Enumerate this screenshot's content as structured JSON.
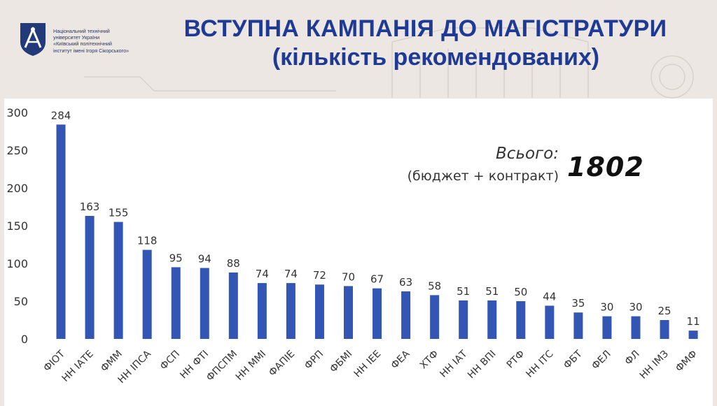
{
  "header": {
    "logo_lines": [
      "Національний технічний",
      "університет України",
      "«Київський політехнічний",
      "інститут імені Ігоря Сікорського»"
    ],
    "title": "ВСТУПНА КАМПАНІЯ ДО МАГІСТРАТУРИ",
    "subtitle": "(кількість рекомендованих)"
  },
  "summary": {
    "label": "Всього:",
    "sublabel": "(бюджет + контракт)",
    "value": "1802"
  },
  "colors": {
    "bar": "#3355b3",
    "title": "#1e3a94",
    "background": "#ece7e2"
  },
  "chart_data": {
    "type": "bar",
    "categories": [
      "ФІОТ",
      "НН ІАТЕ",
      "ФММ",
      "НН ІПСА",
      "ФСП",
      "НН ФТІ",
      "ФПСПМ",
      "НН ММІ",
      "ФАПІЕ",
      "ФРП",
      "ФБМІ",
      "НН ІЕЕ",
      "ФЕА",
      "ХТФ",
      "НН ІАТ",
      "НН ВПІ",
      "РТФ",
      "НН ІТС",
      "ФБТ",
      "ФЕЛ",
      "ФЛ",
      "НН ІМЗ",
      "ФМФ"
    ],
    "values": [
      284,
      163,
      155,
      118,
      95,
      94,
      88,
      74,
      74,
      72,
      70,
      67,
      63,
      58,
      51,
      51,
      50,
      44,
      35,
      30,
      30,
      25,
      11
    ],
    "yticks": [
      0,
      50,
      100,
      150,
      200,
      250,
      300
    ],
    "ylim": [
      0,
      300
    ],
    "title": "",
    "xlabel": "",
    "ylabel": "",
    "grid": false,
    "data_labels": true
  }
}
